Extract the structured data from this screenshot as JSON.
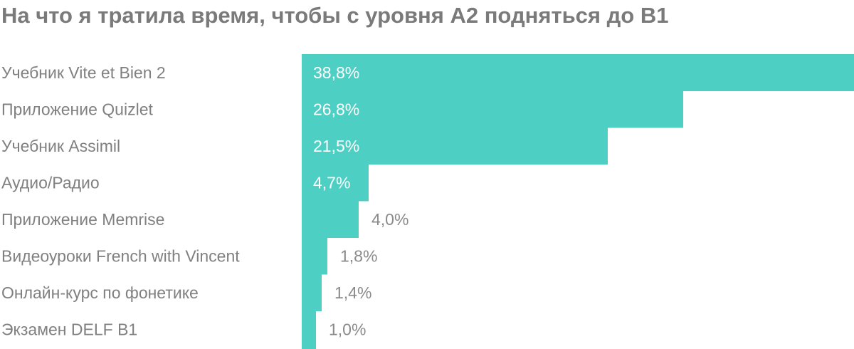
{
  "chart_data": {
    "type": "bar",
    "orientation": "horizontal",
    "title": "На что я тратила время, чтобы с уровня А2 подняться до В1",
    "categories": [
      "Учебник Vite et Bien 2",
      "Приложение Quizlet",
      "Учебник Assimil",
      "Аудио/Радио",
      "Приложение Memrise",
      "Видеоуроки French with Vincent",
      "Онлайн-курс по фонетике",
      "Экзамен DELF B1"
    ],
    "values": [
      38.8,
      26.8,
      21.5,
      4.7,
      4.0,
      1.8,
      1.4,
      1.0
    ],
    "value_labels": [
      "38,8%",
      "26,8%",
      "21,5%",
      "4,7%",
      "4,0%",
      "1,8%",
      "1,4%",
      "1,0%"
    ],
    "xlim": [
      0,
      38.8
    ],
    "grid": false,
    "legend": "none",
    "bar_color": "#4ecfc4",
    "label_inside_color": "#ffffff",
    "label_outside_color": "#8a8a8a",
    "category_color": "#808080",
    "title_color": "#7a7a7a"
  }
}
